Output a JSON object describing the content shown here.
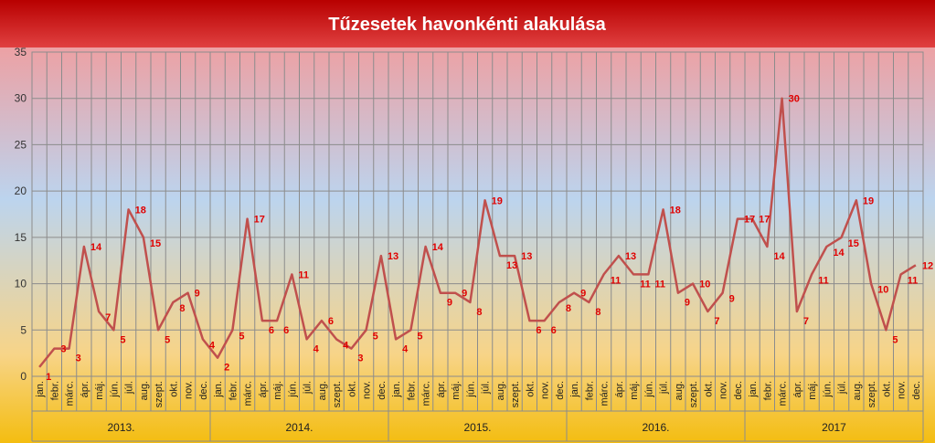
{
  "chart_data": {
    "type": "line",
    "title": "Tűzesetek havonkénti alakulása",
    "xlabel": "",
    "ylabel": "",
    "ylim": [
      0,
      35
    ],
    "yticks": [
      "0",
      "5",
      "10",
      "15",
      "20",
      "25",
      "30",
      "35"
    ],
    "grid": true,
    "legend": "none",
    "years": [
      "2013.",
      "2014.",
      "2015.",
      "2016.",
      "2017"
    ],
    "months": [
      "jan.",
      "febr.",
      "márc.",
      "ápr.",
      "máj.",
      "jún.",
      "júl.",
      "aug.",
      "szept.",
      "okt.",
      "nov.",
      "dec."
    ],
    "series": [
      {
        "name": "",
        "values": [
          1,
          3,
          3,
          14,
          7,
          5,
          18,
          15,
          5,
          8,
          9,
          4,
          2,
          5,
          17,
          6,
          6,
          11,
          4,
          6,
          4,
          3,
          5,
          13,
          4,
          5,
          14,
          9,
          9,
          8,
          19,
          13,
          13,
          6,
          6,
          8,
          9,
          8,
          11,
          13,
          11,
          11,
          18,
          9,
          10,
          7,
          9,
          17,
          17,
          14,
          30,
          7,
          11,
          14,
          15,
          19,
          10,
          5,
          11,
          12
        ],
        "labels": [
          "1",
          "3",
          "3",
          "14",
          "7",
          "5",
          "18",
          "15",
          "5",
          "8",
          "9",
          "4",
          "2",
          "5",
          "17",
          "6",
          "6",
          "11",
          "4",
          "6",
          "4",
          "3",
          "5",
          "13",
          "4",
          "5",
          "14",
          "9",
          "9",
          "8",
          "19",
          "13",
          "13",
          "6",
          "6",
          "8",
          "9",
          "8",
          "11",
          "13",
          "11",
          "11",
          "18",
          "9",
          "10",
          "7",
          "9",
          "17",
          "17",
          "14",
          "30",
          "7",
          "11",
          "14",
          "15",
          "19",
          "10",
          "5",
          "11",
          "12"
        ]
      }
    ],
    "colors": {
      "line": "#c0504d",
      "label": "#e00000",
      "title_bg_top": "#c00000",
      "title_bg_bottom": "#e84b4b",
      "bg_top": "#f5a0a0",
      "bg_mid": "#b8d2ec",
      "bg_bottom": "#f4c21a",
      "grid": "#8c8c8c"
    }
  }
}
